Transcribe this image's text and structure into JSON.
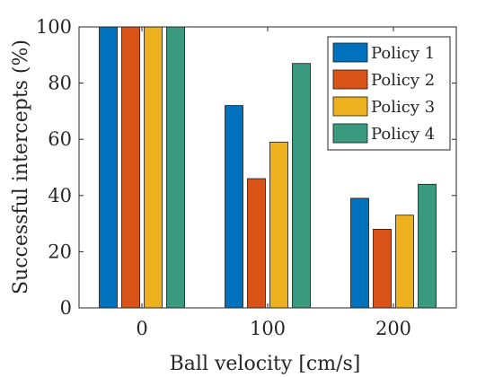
{
  "chart_data": {
    "type": "bar",
    "title": "",
    "xlabel": "Ball velocity [cm/s]",
    "ylabel": "Successful intercepts (%)",
    "categories": [
      "0",
      "100",
      "200"
    ],
    "ylim": [
      0,
      100
    ],
    "yticks": [
      "0",
      "20",
      "40",
      "60",
      "80",
      "100"
    ],
    "grid": false,
    "legend_position": "top-right",
    "series": [
      {
        "name": "Policy 1",
        "color": "#0072BD",
        "values": [
          100,
          72,
          39
        ]
      },
      {
        "name": "Policy 2",
        "color": "#D95319",
        "values": [
          100,
          46,
          28
        ]
      },
      {
        "name": "Policy 3",
        "color": "#EDB120",
        "values": [
          100,
          59,
          33
        ]
      },
      {
        "name": "Policy 4",
        "color": "#3A9A7F",
        "values": [
          100,
          87,
          44
        ]
      }
    ]
  }
}
